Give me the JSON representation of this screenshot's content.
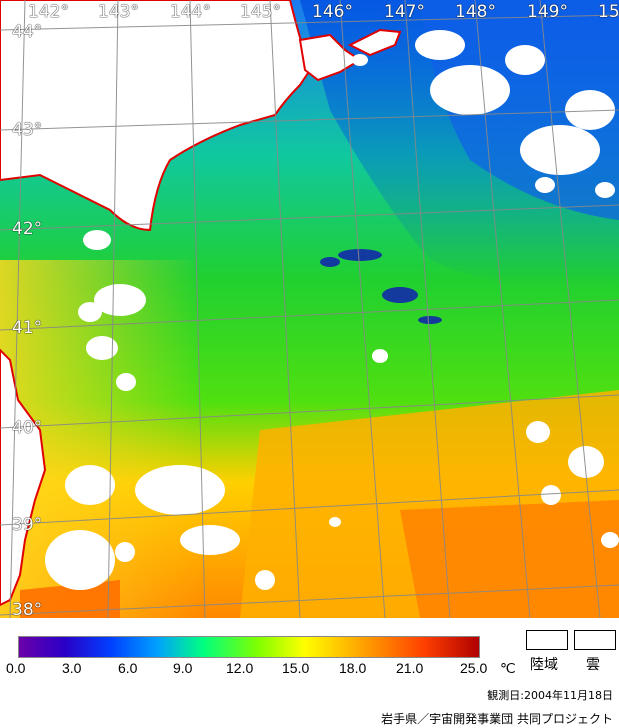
{
  "map": {
    "longitude_labels": [
      "142°",
      "143°",
      "144°",
      "145°",
      "146°",
      "147°",
      "148°",
      "149°",
      "15"
    ],
    "latitude_labels": [
      "44°",
      "43°",
      "42°",
      "41°",
      "40°",
      "39°",
      "38°"
    ],
    "colors": {
      "land": "#ffffff",
      "cloud": "#ffffff",
      "coastline": "#e00000",
      "grid": "#888888"
    }
  },
  "legend": {
    "ticks": [
      "0.0",
      "3.0",
      "6.0",
      "9.0",
      "12.0",
      "15.0",
      "18.0",
      "21.0",
      "25.0"
    ],
    "unit": "℃",
    "land_label": "陸域",
    "cloud_label": "雲",
    "observation_date": "観測日:2004年11月18日",
    "credit": "岩手県／宇宙開発事業団 共同プロジェクト"
  }
}
